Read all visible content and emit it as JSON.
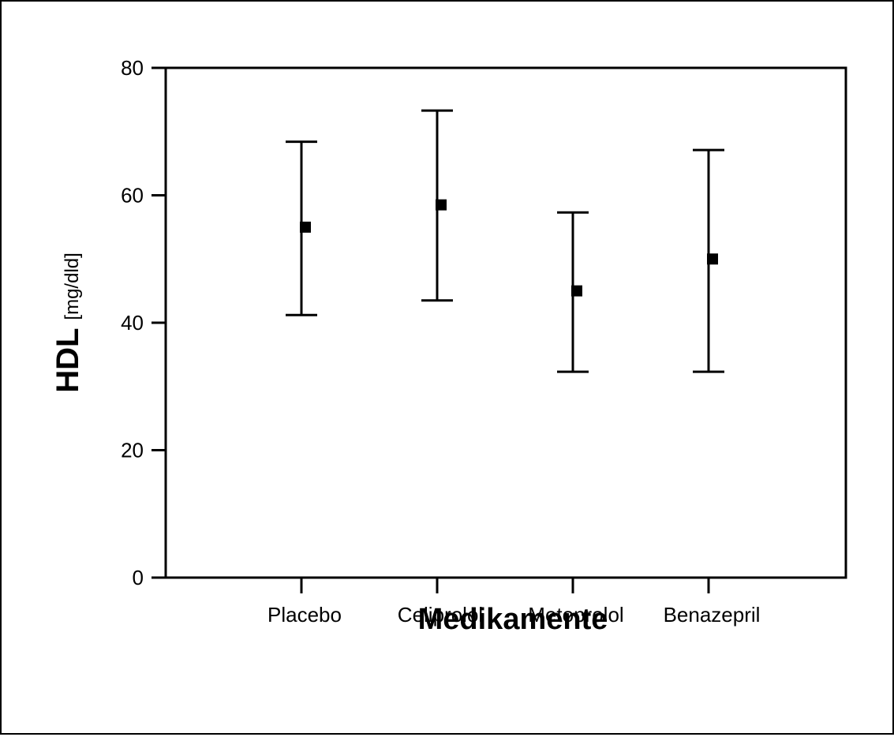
{
  "chart_data": {
    "type": "scatter",
    "title": "",
    "xlabel": "Medikamente",
    "ylabel": "HDL",
    "ylabel_unit": "[mg/dld]",
    "ylim": [
      0,
      80
    ],
    "yticks": [
      0,
      20,
      40,
      60,
      80
    ],
    "grid": false,
    "categories": [
      "Placebo",
      "Celiprolol",
      "Metoprolol",
      "Benazepril"
    ],
    "series": [
      {
        "values": [
          55,
          58.5,
          45,
          50
        ],
        "lower": [
          41.2,
          43.5,
          32.3,
          32.3
        ],
        "upper": [
          68.4,
          73.3,
          57.3,
          67.1
        ]
      }
    ],
    "colors": {
      "marks": "#000000",
      "background": "#ffffff"
    }
  }
}
